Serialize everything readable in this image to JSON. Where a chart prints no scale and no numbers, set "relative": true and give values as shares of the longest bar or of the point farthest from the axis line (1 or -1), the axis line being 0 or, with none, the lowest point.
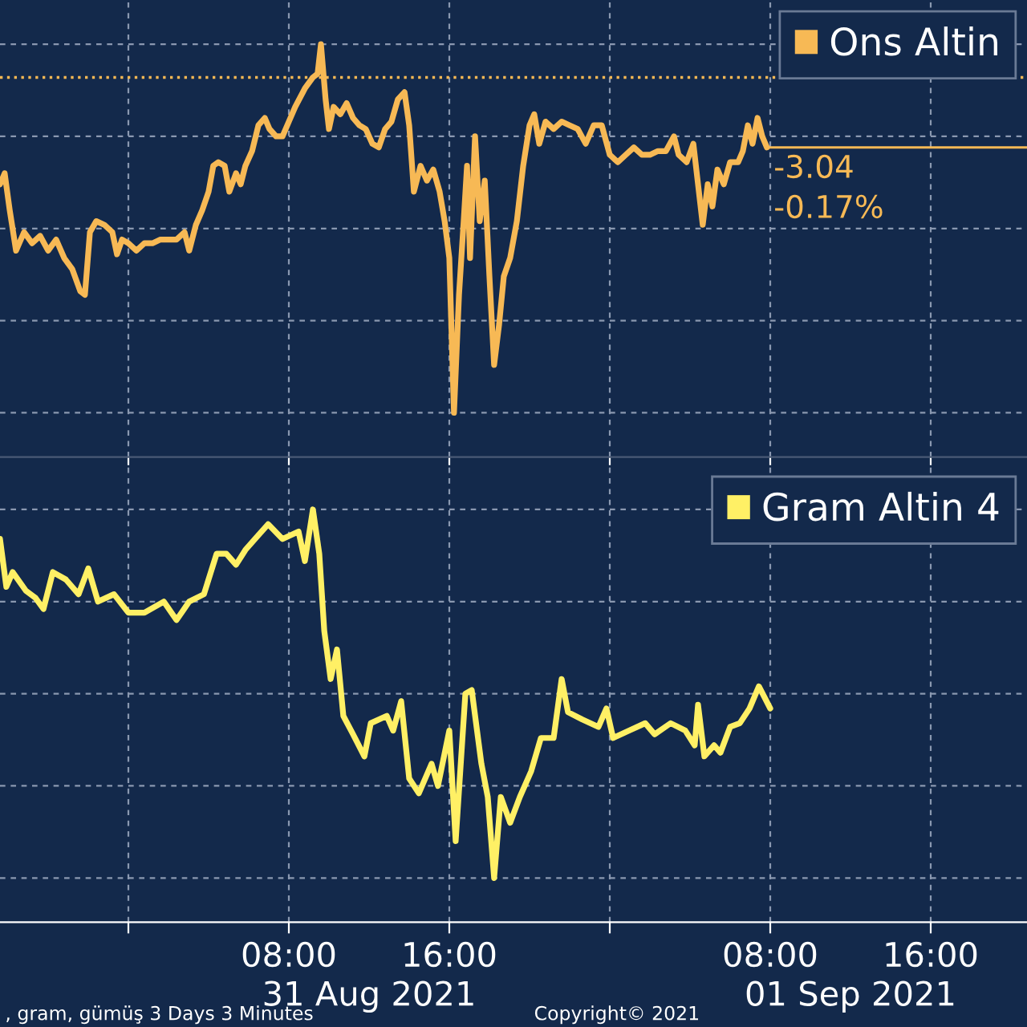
{
  "chart_data": [
    {
      "type": "line",
      "relative": true,
      "tick_labels": false,
      "grid": true,
      "legend": "top right",
      "xlim": [
        "2021-08-30T17:36",
        "2021-09-01T20:48"
      ],
      "xticks": [
        {
          "value": "2021-08-31T00:00",
          "label": null
        },
        {
          "value": "2021-08-31T08:00",
          "label": null
        },
        {
          "value": "2021-08-31T16:00",
          "label": null
        },
        {
          "value": "2021-09-01T00:00",
          "label": null
        },
        {
          "value": "2021-09-01T08:00",
          "label": null
        },
        {
          "value": "2021-09-01T16:00",
          "label": null
        }
      ],
      "x": [
        "2021-08-30T17:36",
        "2021-08-30T17:50",
        "2021-08-30T18:05",
        "2021-08-30T18:24",
        "2021-08-30T18:48",
        "2021-08-30T19:12",
        "2021-08-30T19:36",
        "2021-08-30T20:00",
        "2021-08-30T20:24",
        "2021-08-30T20:48",
        "2021-08-30T21:12",
        "2021-08-30T21:36",
        "2021-08-30T21:50",
        "2021-08-30T22:05",
        "2021-08-30T22:24",
        "2021-08-30T22:48",
        "2021-08-30T23:12",
        "2021-08-30T23:26",
        "2021-08-30T23:41",
        "2021-08-31T00:00",
        "2021-08-31T00:24",
        "2021-08-31T00:48",
        "2021-08-31T01:12",
        "2021-08-31T01:36",
        "2021-08-31T02:24",
        "2021-08-31T02:48",
        "2021-08-31T03:02",
        "2021-08-31T03:22",
        "2021-08-31T03:41",
        "2021-08-31T04:00",
        "2021-08-31T04:14",
        "2021-08-31T04:29",
        "2021-08-31T04:48",
        "2021-08-31T05:02",
        "2021-08-31T05:22",
        "2021-08-31T05:36",
        "2021-08-31T05:50",
        "2021-08-31T06:10",
        "2021-08-31T06:29",
        "2021-08-31T06:48",
        "2021-08-31T07:02",
        "2021-08-31T07:22",
        "2021-08-31T07:41",
        "2021-08-31T08:00",
        "2021-08-31T08:19",
        "2021-08-31T08:48",
        "2021-08-31T09:12",
        "2021-08-31T09:26",
        "2021-08-31T09:36",
        "2021-08-31T09:50",
        "2021-08-31T10:00",
        "2021-08-31T10:14",
        "2021-08-31T10:34",
        "2021-08-31T10:53",
        "2021-08-31T11:12",
        "2021-08-31T11:31",
        "2021-08-31T11:50",
        "2021-08-31T12:10",
        "2021-08-31T12:29",
        "2021-08-31T12:48",
        "2021-08-31T13:07",
        "2021-08-31T13:26",
        "2021-08-31T13:46",
        "2021-08-31T14:00",
        "2021-08-31T14:14",
        "2021-08-31T14:34",
        "2021-08-31T14:53",
        "2021-08-31T15:12",
        "2021-08-31T15:31",
        "2021-08-31T15:46",
        "2021-08-31T16:00",
        "2021-08-31T16:14",
        "2021-08-31T16:29",
        "2021-08-31T16:43",
        "2021-08-31T16:53",
        "2021-08-31T17:02",
        "2021-08-31T17:17",
        "2021-08-31T17:31",
        "2021-08-31T17:46",
        "2021-08-31T18:00",
        "2021-08-31T18:14",
        "2021-08-31T18:29",
        "2021-08-31T18:43",
        "2021-08-31T19:02",
        "2021-08-31T19:22",
        "2021-08-31T19:41",
        "2021-08-31T20:00",
        "2021-08-31T20:14",
        "2021-08-31T20:29",
        "2021-08-31T20:48",
        "2021-08-31T21:12",
        "2021-08-31T21:36",
        "2021-08-31T22:00",
        "2021-08-31T22:24",
        "2021-08-31T22:48",
        "2021-08-31T23:12",
        "2021-08-31T23:36",
        "2021-09-01T00:00",
        "2021-09-01T00:24",
        "2021-09-01T00:48",
        "2021-09-01T01:12",
        "2021-09-01T01:36",
        "2021-09-01T02:00",
        "2021-09-01T02:24",
        "2021-09-01T02:48",
        "2021-09-01T03:12",
        "2021-09-01T03:26",
        "2021-09-01T03:50",
        "2021-09-01T04:10",
        "2021-09-01T04:24",
        "2021-09-01T04:38",
        "2021-09-01T04:53",
        "2021-09-01T05:07",
        "2021-09-01T05:22",
        "2021-09-01T05:41",
        "2021-09-01T06:00",
        "2021-09-01T06:24",
        "2021-09-01T06:38",
        "2021-09-01T06:53",
        "2021-09-01T07:07",
        "2021-09-01T07:22",
        "2021-09-01T07:36",
        "2021-09-01T07:50"
      ],
      "series": [
        {
          "name": "Ons Altin",
          "color": "#f7b955",
          "values": [
            0.62,
            0.65,
            0.55,
            0.44,
            0.49,
            0.46,
            0.48,
            0.44,
            0.47,
            0.42,
            0.39,
            0.33,
            0.32,
            0.49,
            0.52,
            0.51,
            0.49,
            0.43,
            0.47,
            0.46,
            0.44,
            0.46,
            0.46,
            0.47,
            0.47,
            0.49,
            0.44,
            0.51,
            0.55,
            0.6,
            0.67,
            0.68,
            0.67,
            0.6,
            0.65,
            0.62,
            0.67,
            0.71,
            0.78,
            0.8,
            0.77,
            0.75,
            0.75,
            0.79,
            0.83,
            0.88,
            0.91,
            0.92,
            1,
            0.85,
            0.77,
            0.83,
            0.81,
            0.84,
            0.8,
            0.78,
            0.77,
            0.73,
            0.72,
            0.77,
            0.79,
            0.85,
            0.87,
            0.78,
            0.6,
            0.67,
            0.63,
            0.66,
            0.6,
            0.52,
            0.42,
            0,
            0.32,
            0.52,
            0.67,
            0.42,
            0.75,
            0.52,
            0.63,
            0.37,
            0.13,
            0.24,
            0.37,
            0.42,
            0.52,
            0.67,
            0.78,
            0.81,
            0.73,
            0.79,
            0.77,
            0.79,
            0.78,
            0.77,
            0.73,
            0.78,
            0.78,
            0.7,
            0.68,
            0.7,
            0.72,
            0.7,
            0.7,
            0.71,
            0.71,
            0.75,
            0.7,
            0.68,
            0.73,
            0.62,
            0.51,
            0.62,
            0.56,
            0.66,
            0.62,
            0.68,
            0.68,
            0.71,
            0.78,
            0.73,
            0.8,
            0.75,
            0.72
          ]
        }
      ],
      "ref_lines": [
        {
          "axis": "y",
          "value": 0.91,
          "color": "#f7b955",
          "line_style": "dotted"
        },
        {
          "axis": "y",
          "value": 0.72,
          "color": "#f7b955",
          "line_style": "solid"
        }
      ],
      "annotations": [
        {
          "text": "-3.04",
          "x": "2021-09-01T07:50",
          "y": 0.72
        },
        {
          "text": "-0.17%",
          "x": "2021-09-01T07:50",
          "y": 0.72
        }
      ]
    },
    {
      "type": "line",
      "relative": true,
      "tick_labels": "x",
      "grid": true,
      "legend": "top right",
      "xlim": [
        "2021-08-30T17:36",
        "2021-09-01T20:48"
      ],
      "xticks": [
        {
          "value": "2021-08-31T00:00",
          "label": null
        },
        {
          "value": "2021-08-31T08:00",
          "label": "08:00"
        },
        {
          "value": "2021-08-31T16:00",
          "label": "16:00"
        },
        {
          "value": "2021-09-01T00:00",
          "label": null
        },
        {
          "value": "2021-09-01T08:00",
          "label": "08:00"
        },
        {
          "value": "2021-09-01T16:00",
          "label": "16:00"
        }
      ],
      "x2lim": [
        "2021-08-30T17:36",
        "2021-09-01T20:48"
      ],
      "x2ticks": [
        {
          "value": "2021-08-31T12:00",
          "label": "31 Aug 2021"
        },
        {
          "value": "2021-09-01T12:00",
          "label": "01 Sep 2021"
        }
      ],
      "x": [
        "2021-08-30T17:36",
        "2021-08-30T17:55",
        "2021-08-30T18:14",
        "2021-08-30T18:53",
        "2021-08-30T19:22",
        "2021-08-30T19:46",
        "2021-08-30T20:14",
        "2021-08-30T20:53",
        "2021-08-30T21:31",
        "2021-08-30T22:00",
        "2021-08-30T22:29",
        "2021-08-30T23:17",
        "2021-08-31T00:00",
        "2021-08-31T00:48",
        "2021-08-31T01:46",
        "2021-08-31T02:24",
        "2021-08-31T03:02",
        "2021-08-31T03:46",
        "2021-08-31T04:24",
        "2021-08-31T04:53",
        "2021-08-31T05:22",
        "2021-08-31T05:50",
        "2021-08-31T06:19",
        "2021-08-31T06:58",
        "2021-08-31T07:41",
        "2021-08-31T08:29",
        "2021-08-31T08:48",
        "2021-08-31T09:12",
        "2021-08-31T09:31",
        "2021-08-31T09:46",
        "2021-08-31T10:05",
        "2021-08-31T10:24",
        "2021-08-31T10:43",
        "2021-08-31T11:12",
        "2021-08-31T11:46",
        "2021-08-31T12:05",
        "2021-08-31T12:53",
        "2021-08-31T13:12",
        "2021-08-31T13:36",
        "2021-08-31T14:00",
        "2021-08-31T14:29",
        "2021-08-31T15:07",
        "2021-08-31T15:26",
        "2021-08-31T16:00",
        "2021-08-31T16:19",
        "2021-08-31T16:48",
        "2021-08-31T17:07",
        "2021-08-31T17:36",
        "2021-08-31T17:55",
        "2021-08-31T18:14",
        "2021-08-31T18:34",
        "2021-08-31T19:02",
        "2021-08-31T19:31",
        "2021-08-31T20:05",
        "2021-08-31T20:34",
        "2021-08-31T21:12",
        "2021-08-31T21:36",
        "2021-08-31T21:55",
        "2021-08-31T22:38",
        "2021-08-31T23:26",
        "2021-08-31T23:50",
        "2021-09-01T00:10",
        "2021-09-01T00:58",
        "2021-09-01T01:46",
        "2021-09-01T02:14",
        "2021-09-01T03:02",
        "2021-09-01T03:46",
        "2021-09-01T04:14",
        "2021-09-01T04:24",
        "2021-09-01T04:43",
        "2021-09-01T05:12",
        "2021-09-01T05:31",
        "2021-09-01T06:00",
        "2021-09-01T06:29",
        "2021-09-01T06:58",
        "2021-09-01T07:26",
        "2021-09-01T08:00"
      ],
      "series": [
        {
          "name": "Gram Altin 4",
          "color": "#fff065",
          "values": [
            0.92,
            0.79,
            0.83,
            0.78,
            0.76,
            0.73,
            0.83,
            0.81,
            0.77,
            0.84,
            0.75,
            0.77,
            0.72,
            0.72,
            0.75,
            0.7,
            0.75,
            0.77,
            0.88,
            0.88,
            0.85,
            0.89,
            0.92,
            0.96,
            0.92,
            0.94,
            0.86,
            1,
            0.88,
            0.67,
            0.54,
            0.62,
            0.44,
            0.39,
            0.33,
            0.42,
            0.44,
            0.4,
            0.48,
            0.27,
            0.23,
            0.31,
            0.25,
            0.4,
            0.1,
            0.5,
            0.51,
            0.31,
            0.22,
            0,
            0.22,
            0.15,
            0.22,
            0.29,
            0.38,
            0.38,
            0.54,
            0.45,
            0.43,
            0.41,
            0.46,
            0.38,
            0.4,
            0.42,
            0.39,
            0.42,
            0.4,
            0.36,
            0.47,
            0.33,
            0.36,
            0.34,
            0.41,
            0.42,
            0.46,
            0.52,
            0.46
          ]
        }
      ],
      "annotations": [
        ", gram, gümüş 3 Days 3 Minutes",
        "Copyright© 2021"
      ]
    }
  ]
}
